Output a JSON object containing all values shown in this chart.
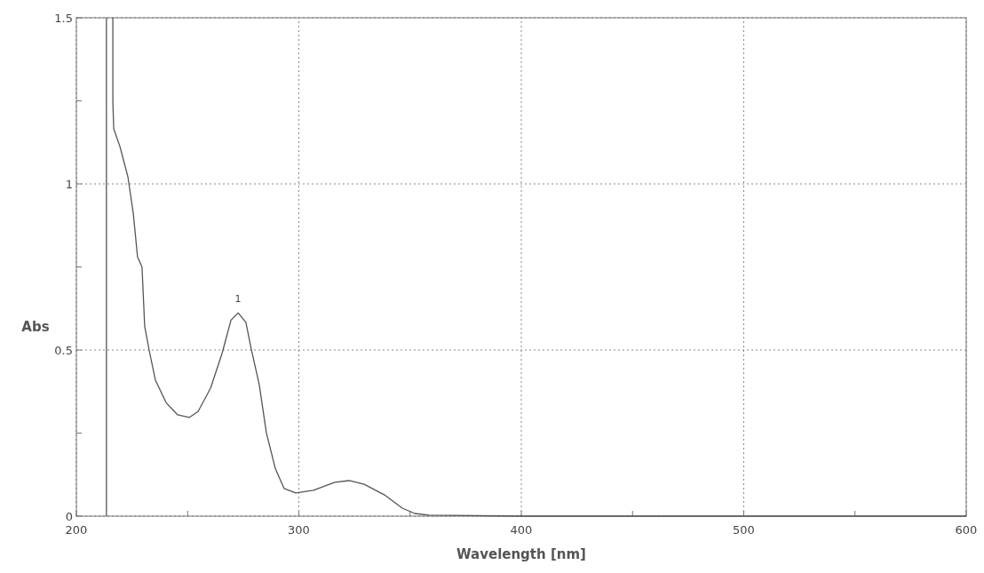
{
  "chart_data": {
    "type": "line",
    "xlabel": "Wavelength [nm]",
    "ylabel": "Abs",
    "xlim": [
      200,
      600
    ],
    "xticks": [
      200,
      {
        "value": 250,
        "label": null
      },
      300,
      {
        "value": 350,
        "label": null
      },
      400,
      {
        "value": 450,
        "label": null
      },
      500,
      {
        "value": 550,
        "label": null
      },
      600
    ],
    "ylim": [
      0,
      1.5
    ],
    "yticks": [
      0,
      {
        "value": 0.25,
        "label": null
      },
      0.5,
      {
        "value": 0.75,
        "label": null
      },
      1,
      {
        "value": 1.25,
        "label": null
      },
      1.5
    ],
    "grid": true,
    "line_style": "solid",
    "marker": "none",
    "ref_lines": [
      {
        "axis": "x",
        "value": 213.5,
        "color": "#555555"
      }
    ],
    "annotations": [
      {
        "text": "1",
        "x": 272.7,
        "y": 0.612
      }
    ],
    "series": [
      {
        "color": "#555555",
        "x": [
          216.4,
          216.4,
          216.8,
          219.6,
          223.2,
          225.6,
          227.5,
          229.5,
          230.7,
          232.7,
          235.5,
          240.3,
          245.5,
          250.7,
          254.7,
          260.3,
          265.5,
          269.5,
          272.7,
          276.2,
          278.6,
          282.2,
          285.4,
          289.4,
          293.4,
          298.6,
          306.6,
          316.2,
          322.6,
          329.4,
          338.5,
          346.5,
          352.1,
          358.5,
          400,
          500,
          600
        ],
        "values": [
          1.5,
          1.246,
          1.166,
          1.112,
          1.02,
          0.91,
          0.78,
          0.75,
          0.572,
          0.5,
          0.41,
          0.342,
          0.305,
          0.297,
          0.315,
          0.385,
          0.49,
          0.59,
          0.612,
          0.583,
          0.503,
          0.396,
          0.251,
          0.144,
          0.083,
          0.07,
          0.078,
          0.102,
          0.107,
          0.096,
          0.064,
          0.024,
          0.008,
          0.003,
          0,
          0,
          0
        ]
      }
    ]
  }
}
